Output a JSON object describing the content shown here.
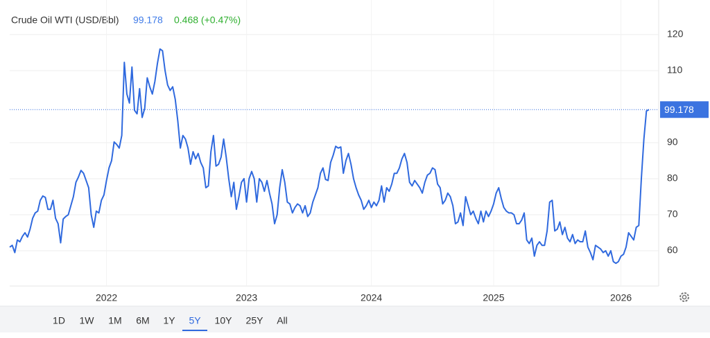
{
  "chart_data": {
    "type": "line",
    "title": "Crude Oil WTI (USD/Bbl)",
    "last_price": 99.178,
    "change": "0.468 (+0.47%)",
    "color": "#2f69de",
    "grid": true,
    "ylim": [
      50.2,
      129.6
    ],
    "yticks": [
      60,
      70,
      80,
      90,
      110,
      120
    ],
    "ranges": [
      "1D",
      "1W",
      "1M",
      "6M",
      "1Y",
      "5Y",
      "10Y",
      "25Y",
      "All"
    ],
    "active_range": "5Y",
    "categories": [
      null,
      null,
      null,
      null,
      null,
      null,
      null,
      null,
      null,
      null,
      null,
      null,
      null,
      null,
      null,
      null,
      null,
      null,
      null,
      null,
      null,
      null,
      null,
      null,
      null,
      null,
      null,
      null,
      null,
      null,
      null,
      null,
      null,
      null,
      null,
      null,
      null,
      null,
      "2022",
      null,
      null,
      null,
      null,
      null,
      null,
      null,
      null,
      null,
      null,
      null,
      null,
      null,
      null,
      null,
      null,
      null,
      null,
      null,
      null,
      null,
      null,
      null,
      null,
      null,
      null,
      null,
      null,
      null,
      null,
      null,
      null,
      null,
      null,
      null,
      null,
      null,
      null,
      null,
      null,
      null,
      null,
      null,
      null,
      null,
      null,
      null,
      null,
      null,
      null,
      null,
      null,
      null,
      null,
      "2023",
      null,
      null,
      null,
      null,
      null,
      null,
      null,
      null,
      null,
      null,
      null,
      null,
      null,
      null,
      null,
      null,
      null,
      null,
      null,
      null,
      null,
      null,
      null,
      null,
      null,
      null,
      null,
      null,
      null,
      null,
      null,
      null,
      null,
      null,
      null,
      null,
      null,
      null,
      null,
      null,
      null,
      null,
      null,
      null,
      null,
      null,
      null,
      null,
      "2024",
      null,
      null,
      null,
      null,
      null,
      null,
      null,
      null,
      null,
      null,
      null,
      null,
      null,
      null,
      null,
      null,
      null,
      null,
      null,
      null,
      null,
      null,
      null,
      null,
      null,
      null,
      null,
      null,
      null,
      null,
      null,
      null,
      null,
      null,
      null,
      null,
      null,
      null,
      null,
      null,
      null,
      null,
      null,
      null,
      null,
      null,
      null,
      "2025",
      null,
      null,
      null,
      null,
      null,
      null,
      null,
      null,
      null,
      null,
      null,
      null,
      null,
      null,
      null,
      null,
      null,
      null,
      null,
      null,
      null,
      null,
      null,
      null,
      null,
      null,
      null,
      null,
      null,
      null,
      null,
      null,
      null,
      null,
      null,
      null,
      null,
      null,
      null,
      null,
      null,
      null,
      null,
      null,
      null,
      null,
      null,
      null,
      null,
      "2026",
      null,
      null,
      null,
      null,
      null,
      null,
      null,
      null,
      null,
      null,
      null
    ],
    "values": [
      61,
      61.5,
      59.5,
      63,
      62.5,
      64,
      65,
      63.8,
      66,
      69,
      70.5,
      71,
      74,
      75.2,
      74.8,
      71.5,
      71.5,
      74,
      69,
      67.5,
      62.2,
      68.8,
      69.5,
      70,
      72.5,
      75,
      79,
      80.5,
      82.3,
      81.5,
      79.5,
      77.5,
      70,
      66.5,
      71,
      70.5,
      74,
      75.5,
      79.5,
      83,
      85,
      90.2,
      89.5,
      88.5,
      92,
      112.3,
      103.5,
      101,
      111,
      99,
      98,
      105,
      97,
      99.5,
      108,
      105.5,
      103.5,
      107,
      112,
      116,
      115.5,
      110,
      106,
      104.5,
      105.5,
      102,
      96,
      88.5,
      92,
      91,
      88.5,
      84,
      87.5,
      85.5,
      87,
      84.5,
      83,
      77.5,
      78,
      87.5,
      92,
      83.5,
      84,
      86,
      91,
      86,
      80,
      75,
      79,
      71.5,
      75,
      79,
      80,
      73.5,
      80,
      82,
      80,
      73.5,
      80,
      79,
      76.5,
      79.5,
      76,
      73,
      67.5,
      70,
      77.5,
      82.5,
      79,
      73.5,
      73,
      70.5,
      72,
      73,
      72.5,
      70.5,
      72.5,
      69.5,
      70.5,
      73.5,
      75.5,
      77.5,
      81.5,
      83,
      79.8,
      79.5,
      84.5,
      86.5,
      89,
      88.5,
      88.8,
      81.5,
      85,
      87,
      84,
      80,
      77.5,
      75.5,
      74,
      71.5,
      72.5,
      74,
      72,
      73.5,
      72.5,
      74,
      78,
      73.5,
      77.5,
      76.5,
      78.5,
      81.5,
      81.5,
      83,
      85.5,
      87,
      84.5,
      79,
      78,
      79.5,
      78.5,
      77.5,
      76,
      79,
      81,
      81.5,
      83,
      82.5,
      78.5,
      77.5,
      73,
      74,
      76,
      75,
      72.5,
      67.5,
      68,
      70.5,
      67,
      75,
      72.5,
      70,
      71,
      69,
      67.5,
      71,
      68,
      71,
      69.5,
      71,
      73,
      76,
      77.5,
      74.5,
      72,
      71,
      70.5,
      70.5,
      70,
      67.5,
      67.5,
      68.5,
      70.5,
      63,
      62,
      63.5,
      58.5,
      61.5,
      62.5,
      61.5,
      61.5,
      65.5,
      73.5,
      74,
      65.5,
      66,
      68,
      64.5,
      66.5,
      63.5,
      62.5,
      64.5,
      62,
      63,
      62.5,
      62.5,
      65.5,
      61,
      59.5,
      57.5,
      61.5,
      61,
      60.5,
      59.5,
      60,
      58.5,
      60,
      57,
      56.5,
      57,
      58.5,
      59,
      61,
      65,
      64,
      63,
      66.5,
      67,
      80,
      91,
      98.8,
      99.178
    ]
  }
}
